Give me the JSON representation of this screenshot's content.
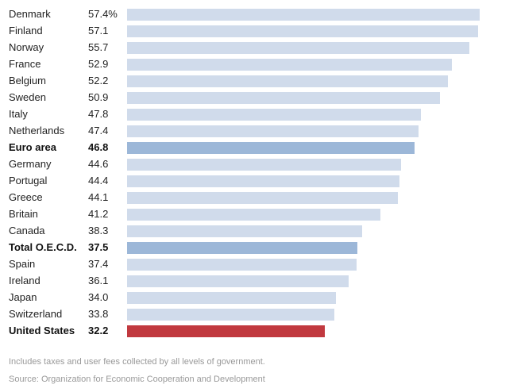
{
  "chart_data": {
    "type": "bar",
    "orientation": "horizontal",
    "unit": "%",
    "categories": [
      "Denmark",
      "Finland",
      "Norway",
      "France",
      "Belgium",
      "Sweden",
      "Italy",
      "Netherlands",
      "Euro area",
      "Germany",
      "Portugal",
      "Greece",
      "Britain",
      "Canada",
      "Total O.E.C.D.",
      "Spain",
      "Ireland",
      "Japan",
      "Switzerland",
      "United States"
    ],
    "values": [
      57.4,
      57.1,
      55.7,
      52.9,
      52.2,
      50.9,
      47.8,
      47.4,
      46.8,
      44.6,
      44.4,
      44.1,
      41.2,
      38.3,
      37.5,
      37.4,
      36.1,
      34.0,
      33.8,
      32.2
    ],
    "value_labels": [
      "57.4%",
      "57.1",
      "55.7",
      "52.9",
      "52.2",
      "50.9",
      "47.8",
      "47.4",
      "46.8",
      "44.6",
      "44.4",
      "44.1",
      "41.2",
      "38.3",
      "37.5",
      "37.4",
      "36.1",
      "34.0",
      "33.8",
      "32.2"
    ],
    "highlight": {
      "Euro area": "aggregate",
      "Total O.E.C.D.": "aggregate",
      "United States": "focus"
    },
    "xlim": [
      0,
      57.4
    ],
    "grid": false
  },
  "colors": {
    "default": "#d0dbeb",
    "aggregate": "#9cb7d8",
    "focus": "#c1393f"
  },
  "notes": {
    "footnote": "Includes taxes and user fees collected by all levels of government.",
    "source": "Source: Organization for Economic Cooperation and Development"
  }
}
